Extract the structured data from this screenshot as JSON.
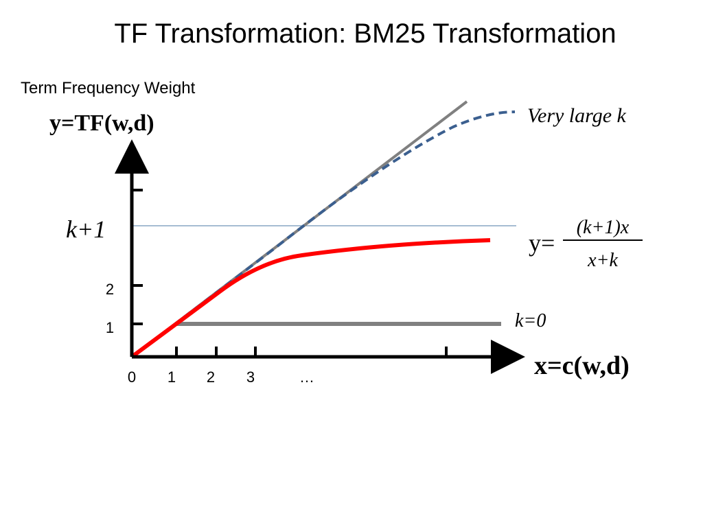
{
  "title": "TF Transformation: BM25 Transformation",
  "y_axis": {
    "caption": "Term Frequency Weight",
    "label": "y=TF(w,d)",
    "ticks": [
      "1",
      "2"
    ],
    "k_plus_1": "k+1"
  },
  "x_axis": {
    "label": "x=c(w,d)",
    "ticks": [
      "0",
      "1",
      "2",
      "3",
      "…"
    ]
  },
  "curves": {
    "very_large_k": "Very large k",
    "k_zero": "k=0",
    "formula": {
      "lhs": "y=",
      "numerator": "(k+1)x",
      "denominator": "x+k"
    }
  }
}
